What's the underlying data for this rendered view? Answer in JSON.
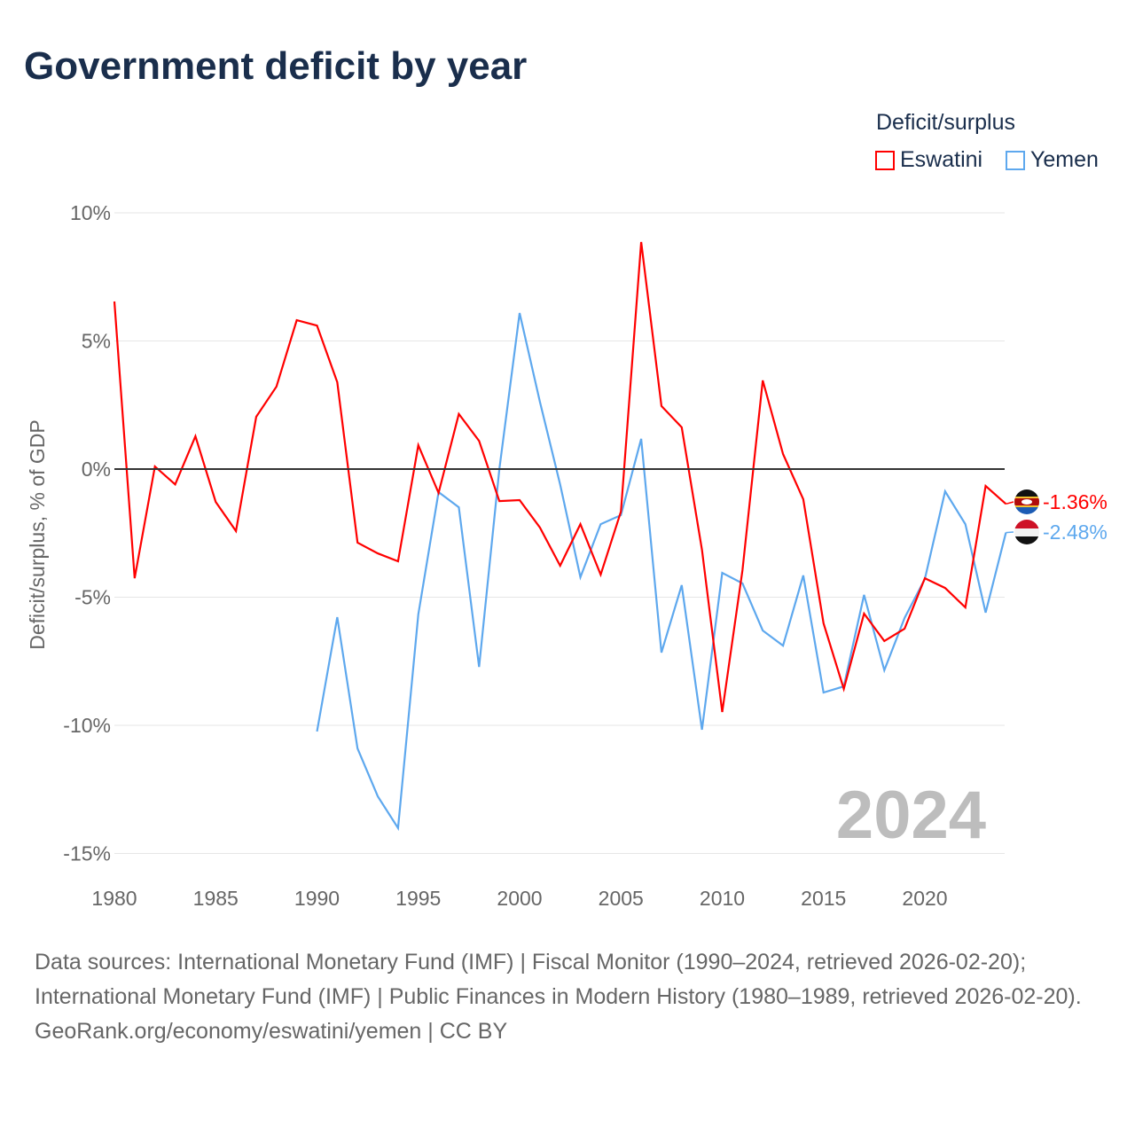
{
  "chart_data": {
    "type": "line",
    "title": "Government deficit by year",
    "ylabel": "Deficit/surplus, % of GDP",
    "xlabel": "",
    "ylim": [
      -15,
      10
    ],
    "xlim": [
      1980,
      2024
    ],
    "yticks": [
      10,
      5,
      0,
      -5,
      -10,
      -15
    ],
    "ytick_labels": [
      "10%",
      "5%",
      "0%",
      "-5%",
      "-10%",
      "-15%"
    ],
    "xticks": [
      1980,
      1985,
      1990,
      1995,
      2000,
      2005,
      2010,
      2015,
      2020
    ],
    "legend_title": "Deficit/surplus",
    "legend_position": "top-right",
    "grid": true,
    "year_watermark": "2024",
    "series": [
      {
        "name": "Eswatini",
        "color": "#ff0000",
        "end_label": "-1.36%",
        "start": 1980,
        "values": [
          6.54,
          -4.26,
          0.1,
          -0.6,
          1.28,
          -1.28,
          -2.42,
          2.04,
          3.22,
          5.81,
          5.6,
          3.39,
          -2.87,
          -3.29,
          -3.6,
          0.93,
          -0.93,
          2.15,
          1.1,
          -1.25,
          -1.21,
          -2.28,
          -3.77,
          -2.15,
          -4.12,
          -1.66,
          8.86,
          2.46,
          1.63,
          -3.15,
          -9.48,
          -3.94,
          3.46,
          0.59,
          -1.18,
          -6.02,
          -8.58,
          -5.64,
          -6.71,
          -6.23,
          -4.26,
          -4.64,
          -5.4,
          -0.66,
          -1.36
        ]
      },
      {
        "name": "Yemen",
        "color": "#5ea8ee",
        "end_label": "-2.48%",
        "start": 1990,
        "values": [
          -10.24,
          -5.78,
          -10.9,
          -12.77,
          -14.01,
          -5.67,
          -0.9,
          -1.49,
          -7.72,
          0,
          6.09,
          2.63,
          -0.6,
          -4.22,
          -2.15,
          -1.8,
          1.18,
          -7.16,
          -4.53,
          -10.17,
          -4.05,
          -4.46,
          -6.3,
          -6.89,
          -4.15,
          -8.72,
          -8.48,
          -4.91,
          -7.85,
          -5.81,
          -4.29,
          -0.87,
          -2.15,
          -5.6,
          -2.48
        ]
      }
    ]
  },
  "source_lines": [
    "Data sources: International Monetary Fund (IMF) | Fiscal Monitor (1990–2024, retrieved 2026-02-20); International Monetary Fund (IMF) | Public Finances in Modern History (1980–1989, retrieved 2026-02-20).",
    "GeoRank.org/economy/eswatini/yemen | CC BY"
  ]
}
